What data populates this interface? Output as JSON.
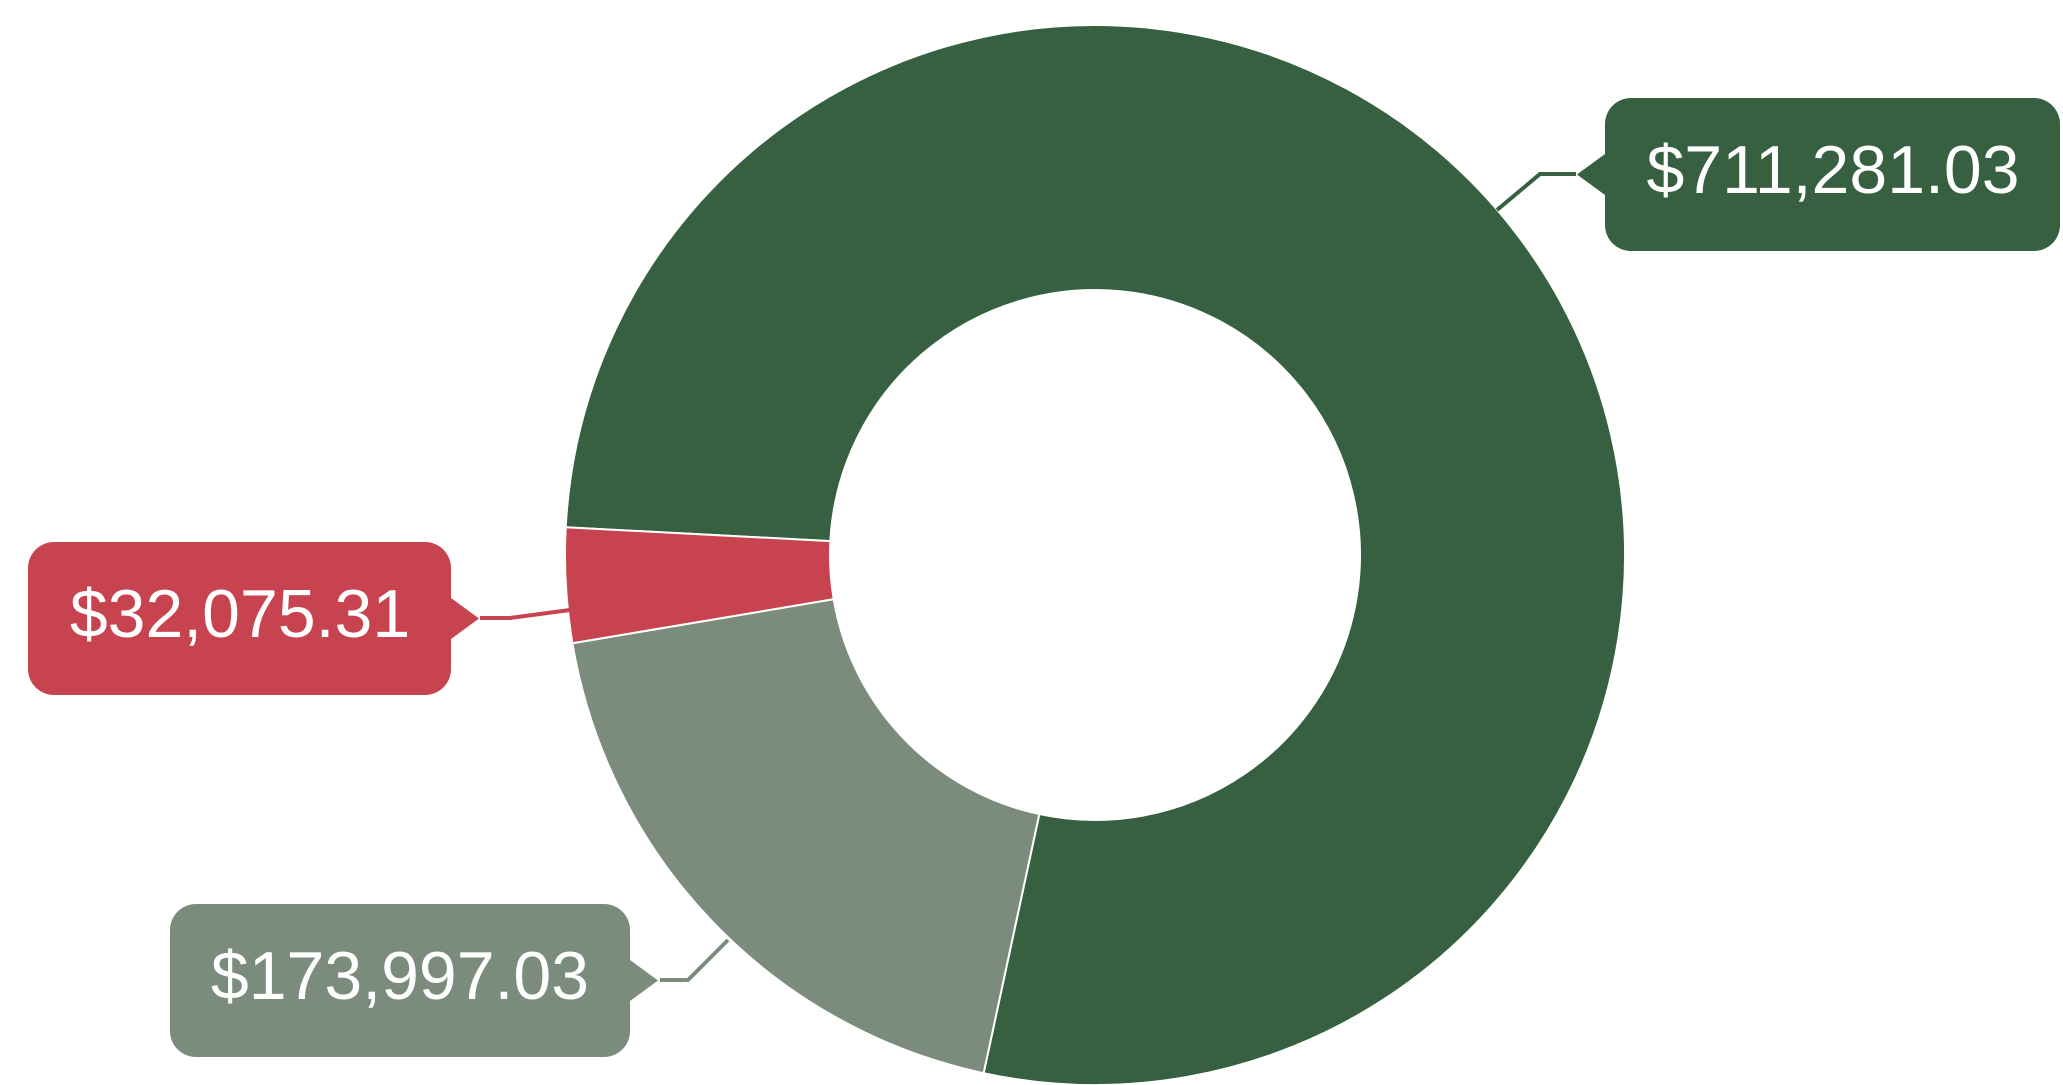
{
  "chart_data": {
    "type": "pie",
    "variant": "donut",
    "slices": [
      {
        "label": "$711,281.03",
        "value": 711281.03,
        "color": "#36603f"
      },
      {
        "label": "$173,997.03",
        "value": 173997.03,
        "color": "#7b8c7d"
      },
      {
        "label": "$32,075.31",
        "value": 32075.31,
        "color": "#c7434f"
      }
    ]
  }
}
